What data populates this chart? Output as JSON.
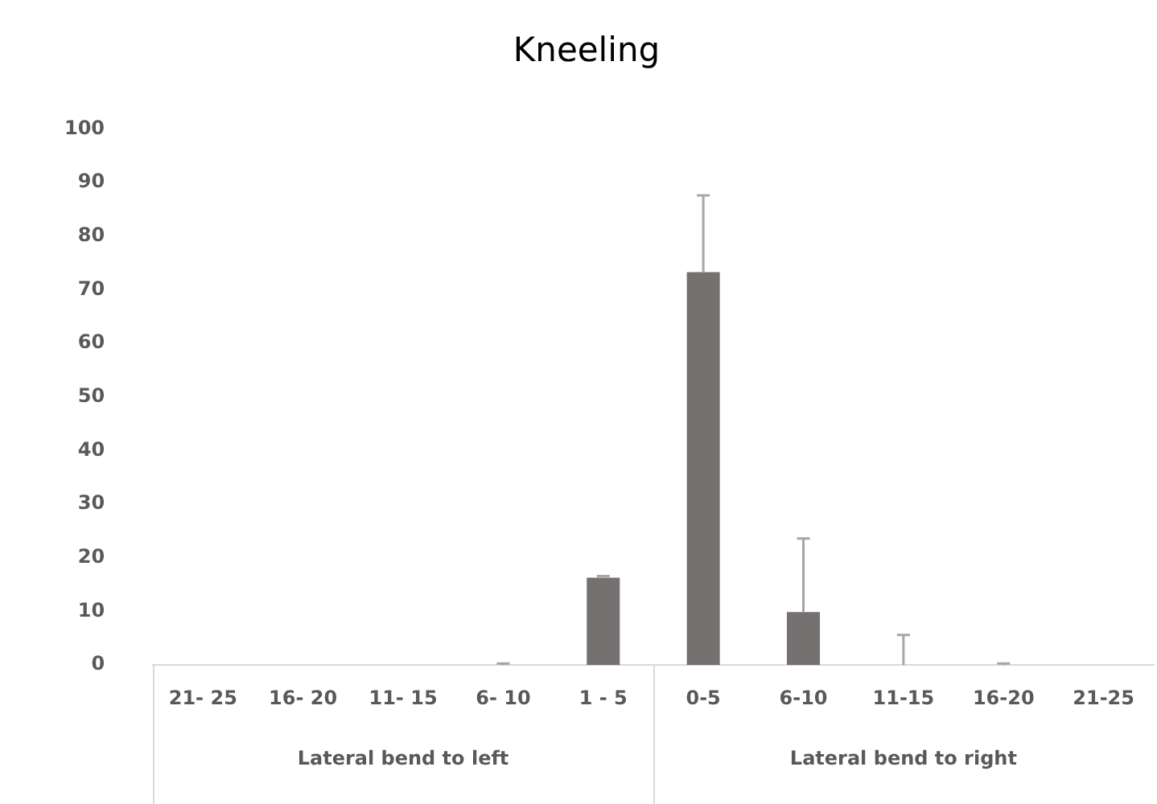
{
  "chart_data": {
    "type": "bar",
    "title": "Kneeling",
    "categories": [
      "21- 25",
      "16- 20",
      "11- 15",
      "6- 10",
      "1 - 5",
      "0-5",
      "6-10",
      "11-15",
      "16-20",
      "21-25"
    ],
    "values": [
      0,
      0,
      0,
      0,
      16.3,
      73.3,
      9.9,
      0,
      0,
      0
    ],
    "errors": [
      null,
      null,
      null,
      [
        0,
        0.3
      ],
      [
        16.3,
        16.6
      ],
      [
        73.3,
        87.6
      ],
      [
        9.9,
        23.6
      ],
      [
        0,
        5.6
      ],
      [
        0,
        0.3
      ],
      null
    ],
    "color": "#767171",
    "ylim": [
      0,
      100
    ],
    "yticks": [
      0,
      10,
      20,
      30,
      40,
      50,
      60,
      70,
      80,
      90,
      100
    ],
    "grid": false,
    "legend": false,
    "annotations": [
      "Lateral bend to left",
      "Lateral bend to right"
    ]
  }
}
